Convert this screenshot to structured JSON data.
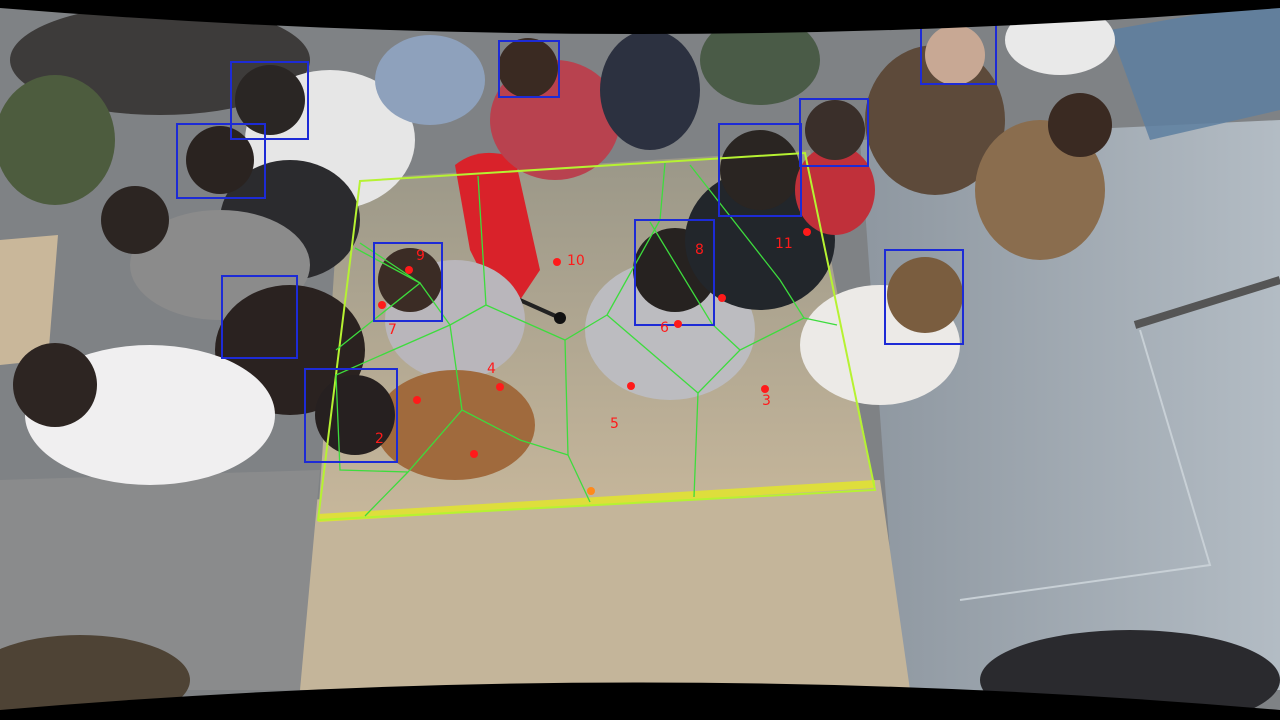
{
  "image": {
    "description_colors": {
      "floor_panel": "#c2b399",
      "floor_grey": "#7d8082",
      "floor_blue_grey": "#8c98a3",
      "voronoi_line": "#3ddc3d",
      "zone_border": "#b6f232",
      "tape_yellow": "#dede3c",
      "face_box": "#1d2bd6",
      "person_marker": "#ff1a1a",
      "center_marker": "#ff8a1a",
      "stroller": "#d9222a"
    }
  },
  "annotations": {
    "person_labels": [
      "2",
      "3",
      "4",
      "5",
      "6",
      "7",
      "8",
      "9",
      "10",
      "11"
    ]
  }
}
